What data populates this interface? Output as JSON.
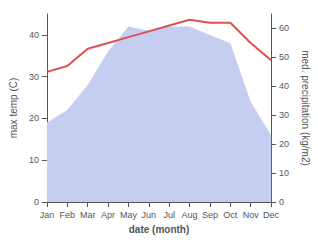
{
  "chart_data": {
    "type": "line",
    "categories": [
      "Jan",
      "Feb",
      "Mar",
      "Apr",
      "May",
      "Jun",
      "Jul",
      "Aug",
      "Sep",
      "Oct",
      "Nov",
      "Dec"
    ],
    "series": [
      {
        "type": "area",
        "color": "#c5cef0",
        "values": [
          19,
          22,
          28,
          36,
          42,
          41,
          42,
          42,
          40,
          38,
          24,
          16
        ]
      },
      {
        "type": "line",
        "color": "#d9534f",
        "axis": "y2",
        "values": [
          45,
          47,
          53,
          55,
          57,
          59,
          61,
          63,
          62,
          62,
          55,
          49
        ]
      }
    ],
    "xlabel": "date (month)",
    "ylabel": "max temp (C)",
    "y2label": "med. precipitation (kg/m2)",
    "ylim": [
      0,
      45
    ],
    "yticks": [
      0,
      10,
      20,
      30,
      40
    ],
    "y2lim": [
      0,
      65
    ],
    "y2ticks": [
      0,
      10,
      20,
      30,
      40,
      50,
      60
    ],
    "grid": false
  }
}
